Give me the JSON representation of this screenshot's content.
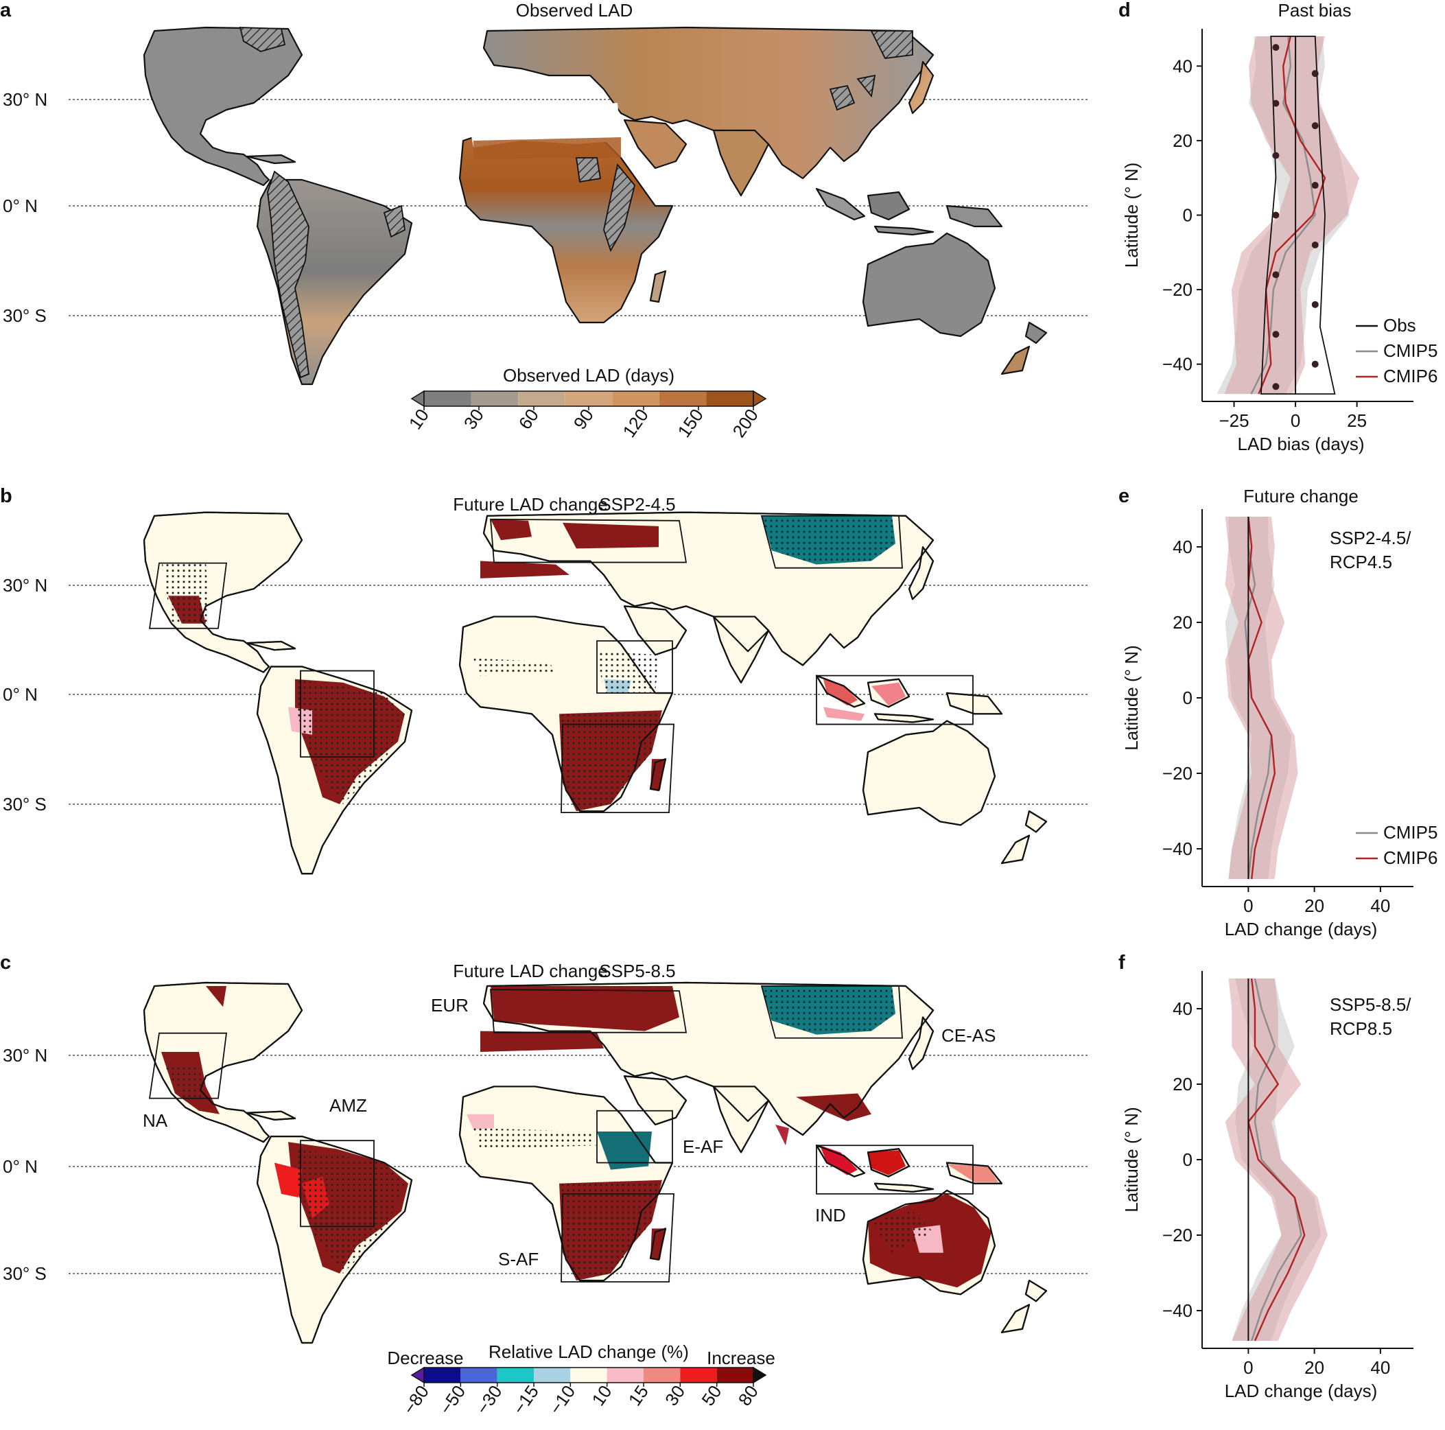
{
  "panel_a": {
    "letter": "a",
    "title": "Observed LAD",
    "lat_labels": [
      "30° N",
      "0° N",
      "30° S"
    ],
    "colorbar_title": "Observed LAD (days)",
    "colorbar_ticks": [
      "10",
      "30",
      "60",
      "90",
      "120",
      "150",
      "200"
    ],
    "colorbar_colors": [
      "#7f7f7f",
      "#a39b8e",
      "#c4aa8c",
      "#d5a57c",
      "#cf945f",
      "#bd7540",
      "#9c531c"
    ]
  },
  "panel_b": {
    "letter": "b",
    "title": "Future LAD change",
    "scenario": "SSP2-4.5",
    "lat_labels": [
      "30° N",
      "0° N",
      "30° S"
    ]
  },
  "panel_c": {
    "letter": "c",
    "title": "Future LAD change",
    "scenario": "SSP5-8.5",
    "lat_labels": [
      "30° N",
      "0° N",
      "30° S"
    ],
    "regions": [
      "EUR",
      "CE-AS",
      "NA",
      "AMZ",
      "E-AF",
      "IND",
      "S-AF"
    ],
    "colorbar_title": "Relative LAD change (%)",
    "colorbar_left": "Decrease",
    "colorbar_right": "Increase",
    "colorbar_ticks": [
      "−80",
      "−50",
      "−30",
      "−15",
      "−10",
      "10",
      "15",
      "30",
      "50",
      "80"
    ],
    "colorbar_colors": [
      "#0a0c8c",
      "#4a66d8",
      "#1ec8c8",
      "#a9d3e2",
      "#fffbe8",
      "#f8bcc6",
      "#f08a80",
      "#ee1c1c",
      "#8a0a0a"
    ]
  },
  "panel_d": {
    "letter": "d",
    "title": "Past bias",
    "ylabel": "Latitude (° N)",
    "xlabel": "LAD bias (days)",
    "yticks": [
      "40",
      "20",
      "0",
      "−20",
      "−40"
    ],
    "xticks": [
      "−25",
      "0",
      "25"
    ],
    "legend": [
      "Obs",
      "CMIP5",
      "CMIP6"
    ]
  },
  "panel_e": {
    "letter": "e",
    "title": "Future change",
    "scenario_line1": "SSP2-4.5/",
    "scenario_line2": "RCP4.5",
    "ylabel": "Latitude (° N)",
    "xlabel": "LAD change (days)",
    "yticks": [
      "40",
      "20",
      "0",
      "−20",
      "−40"
    ],
    "xticks": [
      "0",
      "20",
      "40"
    ],
    "legend": [
      "CMIP5",
      "CMIP6"
    ]
  },
  "panel_f": {
    "letter": "f",
    "scenario_line1": "SSP5-8.5/",
    "scenario_line2": "RCP8.5",
    "ylabel": "Latitude (° N)",
    "xlabel": "LAD change (days)",
    "yticks": [
      "40",
      "20",
      "0",
      "−20",
      "−40"
    ],
    "xticks": [
      "0",
      "20",
      "40"
    ]
  },
  "colors": {
    "cmip5": "#8c8c8c",
    "cmip6": "#b22222",
    "cmip5_band": "#c8c8c8",
    "cmip6_band": "#d9a0a5",
    "land_future": "#fffbe8",
    "dark_red": "#8a1a1a"
  },
  "chart_data": [
    {
      "type": "line",
      "title": "Past bias",
      "xlabel": "LAD bias (days)",
      "ylabel": "Latitude (° N)",
      "xlim": [
        -38,
        48
      ],
      "ylim": [
        -50,
        50
      ],
      "series": [
        {
          "name": "Obs",
          "lat": [
            -48,
            -40,
            -30,
            -20,
            -10,
            0,
            10,
            20,
            30,
            40,
            48
          ],
          "values": [
            0,
            0,
            0,
            0,
            0,
            0,
            0,
            0,
            0,
            0,
            0
          ]
        },
        {
          "name": "CMIP5",
          "lat": [
            -48,
            -40,
            -30,
            -20,
            -10,
            0,
            10,
            20,
            30,
            40,
            48
          ],
          "values": [
            -18,
            -12,
            -10,
            -9,
            -4,
            8,
            6,
            3,
            -5,
            -2,
            -3
          ]
        },
        {
          "name": "CMIP6",
          "lat": [
            -48,
            -40,
            -30,
            -20,
            -10,
            0,
            10,
            20,
            30,
            40,
            48
          ],
          "values": [
            -15,
            -10,
            -11,
            -12,
            -8,
            7,
            12,
            2,
            -4,
            -5,
            -2
          ]
        }
      ]
    },
    {
      "type": "line",
      "title": "Future change SSP2-4.5/RCP4.5",
      "xlabel": "LAD change (days)",
      "ylabel": "Latitude (° N)",
      "xlim": [
        -14,
        50
      ],
      "ylim": [
        -50,
        50
      ],
      "series": [
        {
          "name": "CMIP5",
          "lat": [
            -48,
            -40,
            -30,
            -20,
            -10,
            0,
            10,
            20,
            30,
            40,
            48
          ],
          "values": [
            0,
            1,
            3,
            6,
            7,
            1,
            0,
            -1,
            2,
            0,
            0
          ]
        },
        {
          "name": "CMIP6",
          "lat": [
            -48,
            -40,
            -30,
            -20,
            -10,
            0,
            10,
            20,
            30,
            40,
            48
          ],
          "values": [
            1,
            2,
            5,
            8,
            7,
            1,
            0,
            4,
            0,
            1,
            0
          ]
        }
      ]
    },
    {
      "type": "line",
      "title": "Future change SSP5-8.5/RCP8.5",
      "xlabel": "LAD change (days)",
      "ylabel": "Latitude (° N)",
      "xlim": [
        -14,
        50
      ],
      "ylim": [
        -50,
        50
      ],
      "series": [
        {
          "name": "CMIP5",
          "lat": [
            -48,
            -40,
            -30,
            -20,
            -10,
            0,
            10,
            20,
            30,
            40,
            48
          ],
          "values": [
            1,
            4,
            9,
            16,
            14,
            4,
            2,
            3,
            8,
            4,
            2
          ]
        },
        {
          "name": "CMIP6",
          "lat": [
            -48,
            -40,
            -30,
            -20,
            -10,
            0,
            10,
            20,
            30,
            40,
            48
          ],
          "values": [
            2,
            6,
            12,
            17,
            14,
            3,
            0,
            9,
            2,
            2,
            1
          ]
        }
      ]
    }
  ]
}
